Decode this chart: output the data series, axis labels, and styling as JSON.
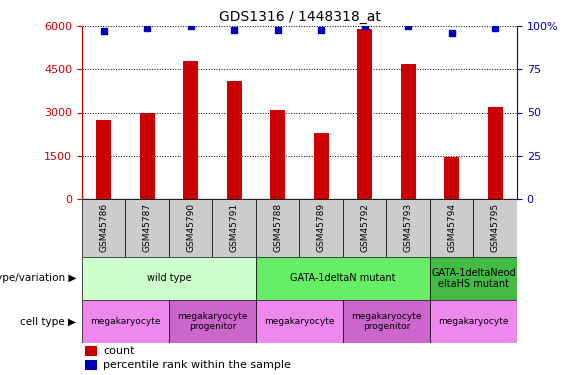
{
  "title": "GDS1316 / 1448318_at",
  "samples": [
    "GSM45786",
    "GSM45787",
    "GSM45790",
    "GSM45791",
    "GSM45788",
    "GSM45789",
    "GSM45792",
    "GSM45793",
    "GSM45794",
    "GSM45795"
  ],
  "counts": [
    2750,
    3000,
    4800,
    4100,
    3100,
    2300,
    5900,
    4700,
    1450,
    3200
  ],
  "percentiles": [
    97,
    99,
    100,
    98,
    98,
    98,
    100,
    100,
    96,
    99
  ],
  "ylim_left": [
    0,
    6000
  ],
  "ylim_right": [
    0,
    100
  ],
  "yticks_left": [
    0,
    1500,
    3000,
    4500,
    6000
  ],
  "yticks_right": [
    0,
    25,
    50,
    75,
    100
  ],
  "bar_color": "#cc0000",
  "dot_color": "#0000bb",
  "genotype_groups": [
    {
      "label": "wild type",
      "start": 0,
      "end": 4,
      "color": "#ccffcc"
    },
    {
      "label": "GATA-1deltaN mutant",
      "start": 4,
      "end": 8,
      "color": "#66ee66"
    },
    {
      "label": "GATA-1deltaNeod\neltaHS mutant",
      "start": 8,
      "end": 10,
      "color": "#44bb44"
    }
  ],
  "cell_type_groups": [
    {
      "label": "megakaryocyte",
      "start": 0,
      "end": 2,
      "color": "#ee88ee"
    },
    {
      "label": "megakaryocyte\nprogenitor",
      "start": 2,
      "end": 4,
      "color": "#cc66cc"
    },
    {
      "label": "megakaryocyte",
      "start": 4,
      "end": 6,
      "color": "#ee88ee"
    },
    {
      "label": "megakaryocyte\nprogenitor",
      "start": 6,
      "end": 8,
      "color": "#cc66cc"
    },
    {
      "label": "megakaryocyte",
      "start": 8,
      "end": 10,
      "color": "#ee88ee"
    }
  ],
  "left_label_genotype": "genotype/variation",
  "left_label_cell": "cell type",
  "legend_count_label": "count",
  "legend_pct_label": "percentile rank within the sample",
  "left_axis_color": "#cc0000",
  "right_axis_color": "#0000bb",
  "sample_box_color": "#cccccc",
  "arrow_color": "#444444"
}
